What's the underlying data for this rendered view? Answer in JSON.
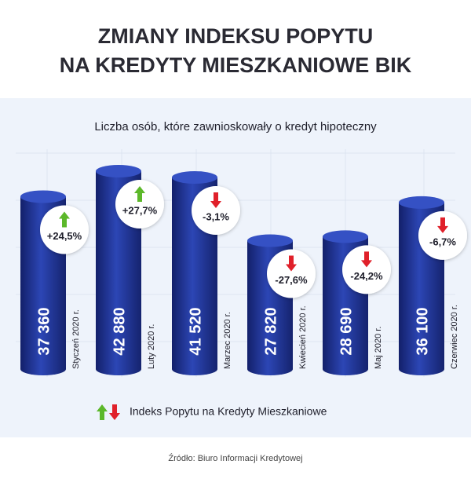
{
  "chart_data": {
    "type": "bar",
    "title": [
      "ZMIANY INDEKSU POPYTU",
      "NA KREDYTY MIESZKANIOWE BIK"
    ],
    "subtitle": "Liczba osób, które zawnioskowały o kredyt hipoteczny",
    "categories": [
      "Styczeń 2020 r.",
      "Luty 2020 r.",
      "Marzec 2020 r.",
      "Kwiecień 2020 r.",
      "Maj 2020 r.",
      "Czerwiec 2020 r."
    ],
    "values": [
      37360,
      42880,
      41520,
      27820,
      28690,
      36100
    ],
    "value_labels": [
      "37 360",
      "42 880",
      "41 520",
      "27 820",
      "28 690",
      "36 100"
    ],
    "color": "#2339a3",
    "changes": {
      "name": "Indeks Popytu na Kredyty Mieszkaniowe",
      "values": [
        24.5,
        27.7,
        -3.1,
        -27.6,
        -24.2,
        -6.7
      ],
      "value_labels": [
        "+24,5%",
        "+27,7%",
        "-3,1%",
        "-27,6%",
        "-24,2%",
        "-6,7%"
      ],
      "up_color": "#5cb82a",
      "down_color": "#e0202a"
    },
    "source": "Źródło: Biuro Informacji Kredytowej"
  }
}
